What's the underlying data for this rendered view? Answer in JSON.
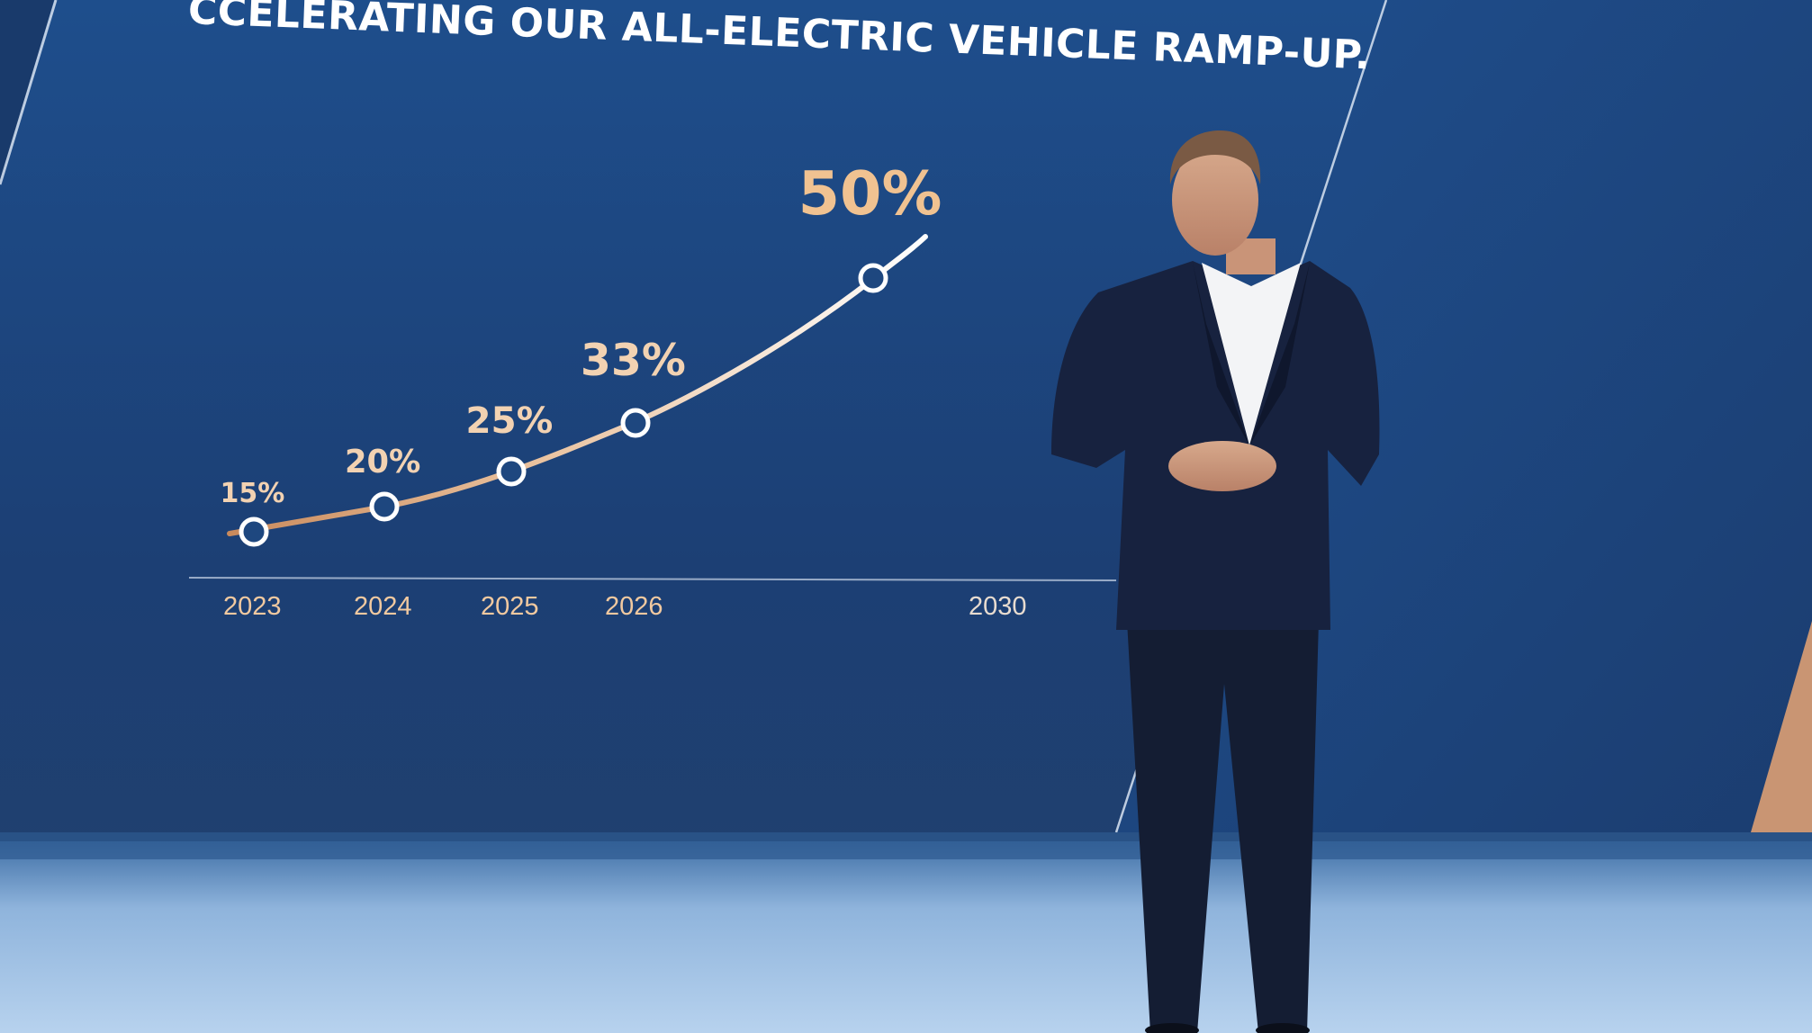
{
  "slide": {
    "title": "CCELERATING OUR ALL-ELECTRIC VEHICLE RAMP-UP."
  },
  "chart_data": {
    "type": "line",
    "title": "CCELERATING OUR ALL-ELECTRIC VEHICLE RAMP-UP.",
    "x": [
      "2023",
      "2024",
      "2025",
      "2026",
      "2030"
    ],
    "xlabel": "",
    "ylabel": "",
    "series": [
      {
        "values": [
          15,
          20,
          25,
          33,
          50
        ],
        "labels": [
          "15%",
          "20%",
          "25%",
          "33%",
          "50%"
        ]
      }
    ],
    "grid": false,
    "legend": "none"
  },
  "colors": {
    "background": "#1b3d72",
    "label_accent": "#f1c9a0",
    "curve_start": "#c98a5c",
    "curve_end": "#ffffff",
    "stage_floor": "#a9c8e6"
  }
}
